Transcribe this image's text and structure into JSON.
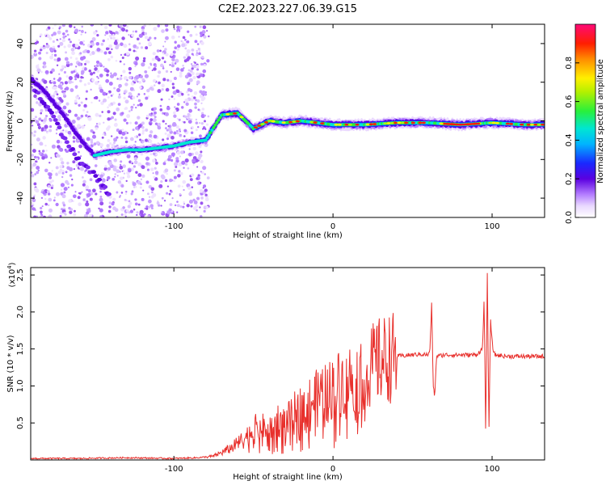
{
  "title": "C2E2.2023.227.06.39.G15",
  "chart_data": [
    {
      "type": "heatmap",
      "xlabel": "Height of straight line (km)",
      "ylabel": "Frequency (Hz)",
      "xlim": [
        -190,
        133
      ],
      "ylim": [
        -50,
        50
      ],
      "x_ticks": [
        -100,
        0,
        100
      ],
      "x_tick_labels": [
        "-100",
        "0",
        "100"
      ],
      "y_ticks": [
        -40,
        -20,
        0,
        20,
        40
      ],
      "y_tick_labels": [
        "-40",
        "-20",
        "0",
        "20",
        "40"
      ],
      "grid": false,
      "ridge": {
        "x": [
          -190,
          -180,
          -170,
          -160,
          -150,
          -140,
          -130,
          -120,
          -110,
          -100,
          -90,
          -80,
          -70,
          -60,
          -50,
          -40,
          -30,
          -20,
          -10,
          0,
          20,
          40,
          60,
          80,
          100,
          120,
          133
        ],
        "y": [
          22,
          14,
          4,
          -8,
          -18,
          -16,
          -15,
          -15,
          -14,
          -13,
          -11,
          -10,
          3,
          4,
          -4,
          0,
          -1,
          0,
          -1,
          -2,
          -2,
          -1,
          -1,
          -2,
          -1,
          -2,
          -2
        ]
      },
      "low_branch": {
        "x": [
          -190,
          -180,
          -170,
          -160,
          -150,
          -145,
          -140
        ],
        "y": [
          20,
          8,
          -8,
          -20,
          -28,
          -33,
          -38
        ]
      },
      "colorbar": {
        "label": "Normalized spectral amplitude",
        "ticks": [
          0.0,
          0.2,
          0.4,
          0.6,
          0.8
        ],
        "tick_labels": [
          "0.0",
          "0.2",
          "0.4",
          "0.6",
          "0.8"
        ],
        "range": [
          0,
          1
        ],
        "colormap": "rainbow (white-violet-blue-cyan-green-yellow-orange-red-magenta)"
      }
    },
    {
      "type": "line",
      "xlabel": "Height of straight line (km)",
      "ylabel": "SNR (10 * v/v)",
      "y_multiplier": "(x10",
      "y_multiplier_exp": "4",
      "xlim": [
        -190,
        133
      ],
      "ylim": [
        0,
        2.6
      ],
      "x_ticks": [
        -100,
        0,
        100
      ],
      "x_tick_labels": [
        "-100",
        "0",
        "100"
      ],
      "y_ticks": [
        0.5,
        1.0,
        1.5,
        2.0,
        2.5
      ],
      "y_tick_labels": [
        "0.5",
        "1.0",
        "1.5",
        "2.0",
        "2.5"
      ],
      "grid": false,
      "color": "#e8302c",
      "series": [
        {
          "x": [
            -190,
            -160,
            -130,
            -100,
            -85,
            -75,
            -70,
            -65,
            -60,
            -55,
            -50,
            -45,
            -40,
            -35,
            -30,
            -25,
            -20,
            -15,
            -10,
            -5,
            0,
            5,
            10,
            15,
            20,
            25,
            30,
            35,
            40,
            45,
            50,
            55,
            60,
            61,
            62,
            63,
            64,
            65,
            70,
            80,
            90,
            94,
            95,
            96,
            97,
            98,
            99,
            100,
            101,
            102,
            105,
            110,
            120,
            133
          ],
          "values": [
            0.02,
            0.02,
            0.03,
            0.02,
            0.03,
            0.05,
            0.1,
            0.15,
            0.22,
            0.3,
            0.42,
            0.45,
            0.38,
            0.55,
            0.5,
            0.62,
            0.72,
            0.78,
            0.85,
            0.9,
            0.98,
            1.05,
            1.1,
            1.12,
            1.2,
            1.28,
            1.35,
            1.38,
            1.4,
            1.41,
            1.42,
            1.43,
            1.42,
            1.5,
            2.1,
            1.0,
            0.85,
            1.4,
            1.42,
            1.42,
            1.42,
            1.5,
            2.2,
            0.3,
            2.5,
            0.4,
            1.9,
            1.6,
            1.45,
            1.42,
            1.41,
            1.4,
            1.4,
            1.4
          ]
        }
      ]
    }
  ]
}
